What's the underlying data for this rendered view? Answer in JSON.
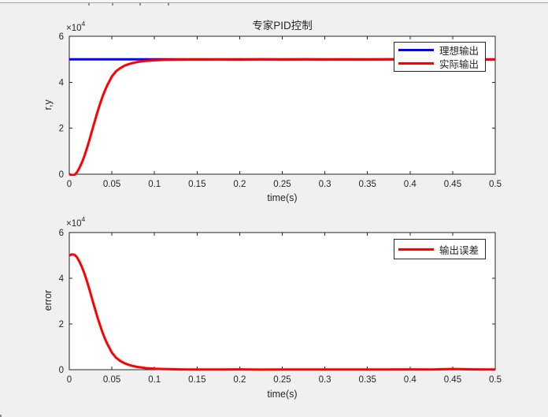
{
  "window": {
    "background": "#f0f0f0",
    "colors": {
      "axis": "#262626",
      "plot_bg": "#ffffff"
    },
    "toolbar_strip": {
      "line_color": "#a6a6a6",
      "mark_color": "#8f8f8f"
    }
  },
  "chart_data": [
    {
      "type": "line",
      "title": "专家PID控制",
      "xlabel": "time(s)",
      "ylabel": "r,y",
      "y_scale_prefix": "×10",
      "y_scale_exponent": "4",
      "xlim": [
        0,
        0.5
      ],
      "ylim": [
        0,
        60000
      ],
      "xticks": [
        0,
        0.05,
        0.1,
        0.15,
        0.2,
        0.25,
        0.3,
        0.35,
        0.4,
        0.45,
        0.5
      ],
      "xtick_labels": [
        "0",
        "0.05",
        "0.1",
        "0.15",
        "0.2",
        "0.25",
        "0.3",
        "0.35",
        "0.4",
        "0.45",
        "0.5"
      ],
      "yticks": [
        0,
        20000,
        40000,
        60000
      ],
      "ytick_labels": [
        "0",
        "2",
        "4",
        "6"
      ],
      "grid": false,
      "legend_position": "northeast",
      "series": [
        {
          "name": "理想输出",
          "color": "#0000ff",
          "line_width": 3,
          "x": [
            0,
            0.5
          ],
          "y": [
            50000,
            50000
          ]
        },
        {
          "name": "实际输出",
          "color": "#ff0000",
          "line_width": 3,
          "x": [
            0,
            0.003,
            0.006,
            0.009,
            0.012,
            0.015,
            0.018,
            0.021,
            0.024,
            0.027,
            0.03,
            0.033,
            0.036,
            0.039,
            0.042,
            0.045,
            0.05,
            0.055,
            0.06,
            0.065,
            0.07,
            0.075,
            0.08,
            0.09,
            0.1,
            0.11,
            0.12,
            0.13,
            0.14,
            0.15,
            0.175,
            0.2,
            0.225,
            0.25,
            0.275,
            0.3,
            0.325,
            0.35,
            0.375,
            0.4,
            0.425,
            0.45,
            0.475,
            0.5
          ],
          "y": [
            0,
            -400,
            -300,
            800,
            2800,
            5200,
            8200,
            11600,
            15400,
            19300,
            23200,
            27000,
            30500,
            33700,
            36500,
            39000,
            42500,
            44800,
            46200,
            47200,
            47900,
            48400,
            48800,
            49300,
            49550,
            49700,
            49800,
            49850,
            49880,
            49900,
            49930,
            49850,
            49950,
            49900,
            49940,
            49880,
            49930,
            49900,
            49940,
            49870,
            49920,
            49700,
            49850,
            49900
          ]
        }
      ]
    },
    {
      "type": "line",
      "title": "",
      "xlabel": "time(s)",
      "ylabel": "error",
      "y_scale_prefix": "×10",
      "y_scale_exponent": "4",
      "xlim": [
        0,
        0.5
      ],
      "ylim": [
        0,
        60000
      ],
      "xticks": [
        0,
        0.05,
        0.1,
        0.15,
        0.2,
        0.25,
        0.3,
        0.35,
        0.4,
        0.45,
        0.5
      ],
      "xtick_labels": [
        "0",
        "0.05",
        "0.1",
        "0.15",
        "0.2",
        "0.25",
        "0.3",
        "0.35",
        "0.4",
        "0.45",
        "0.5"
      ],
      "yticks": [
        0,
        20000,
        40000,
        60000
      ],
      "ytick_labels": [
        "0",
        "2",
        "4",
        "6"
      ],
      "grid": false,
      "legend_position": "northeast",
      "series": [
        {
          "name": "输出误差",
          "color": "#ff0000",
          "line_width": 3,
          "x": [
            0,
            0.003,
            0.006,
            0.009,
            0.012,
            0.015,
            0.018,
            0.021,
            0.024,
            0.027,
            0.03,
            0.033,
            0.036,
            0.039,
            0.042,
            0.045,
            0.05,
            0.055,
            0.06,
            0.065,
            0.07,
            0.075,
            0.08,
            0.09,
            0.1,
            0.11,
            0.12,
            0.13,
            0.14,
            0.15,
            0.175,
            0.2,
            0.225,
            0.25,
            0.275,
            0.3,
            0.325,
            0.35,
            0.375,
            0.4,
            0.425,
            0.45,
            0.475,
            0.5
          ],
          "y": [
            50000,
            50400,
            50300,
            49200,
            47200,
            44800,
            41800,
            38400,
            34600,
            30700,
            26800,
            23000,
            19500,
            16300,
            13500,
            11000,
            7500,
            5200,
            3800,
            2800,
            2100,
            1600,
            1200,
            700,
            450,
            300,
            200,
            150,
            120,
            100,
            70,
            150,
            50,
            100,
            60,
            120,
            70,
            100,
            60,
            130,
            80,
            300,
            150,
            100
          ]
        }
      ]
    }
  ]
}
